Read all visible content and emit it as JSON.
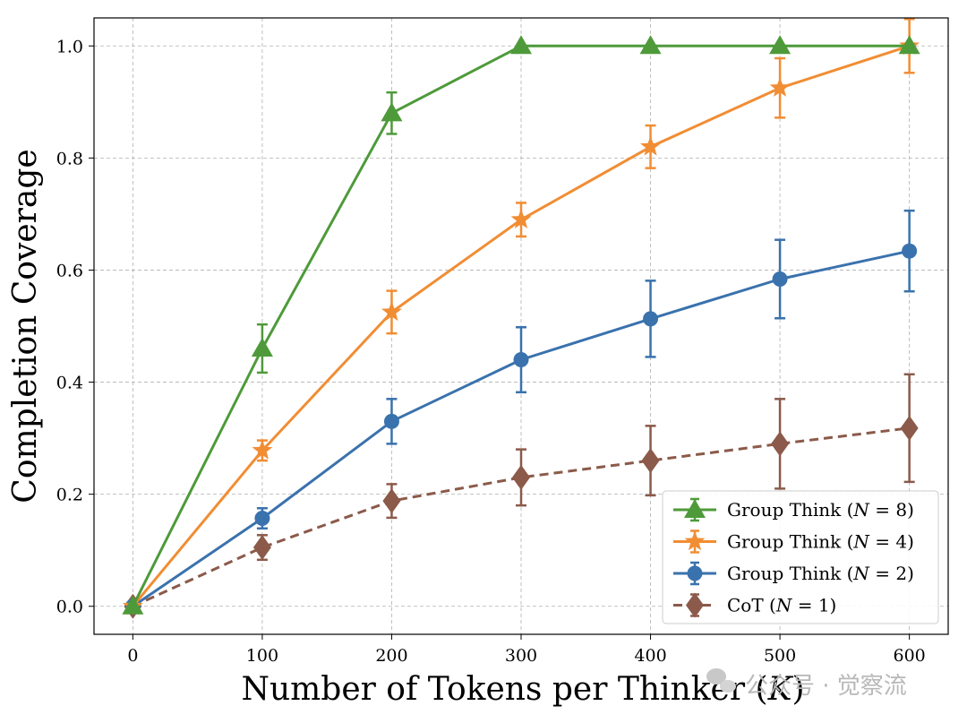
{
  "chart_data": {
    "type": "line",
    "xlabel": "Number of Tokens per Thinker (K)",
    "ylabel": "Completion Coverage",
    "xlim": [
      -30,
      630
    ],
    "ylim": [
      -0.05,
      1.05
    ],
    "x": [
      0,
      100,
      200,
      300,
      400,
      500,
      600
    ],
    "x_ticks": [
      "0",
      "100",
      "200",
      "300",
      "400",
      "500",
      "600"
    ],
    "y_ticks": [
      "0.0",
      "0.2",
      "0.4",
      "0.6",
      "0.8",
      "1.0"
    ],
    "grid": true,
    "legend_position": "lower-right",
    "series": [
      {
        "name": "Group Think (N = 8)",
        "color": "#4e9a3a",
        "marker": "triangle",
        "line_style": "solid",
        "values": [
          0.0,
          0.46,
          0.88,
          1.0,
          1.0,
          1.0,
          1.0
        ],
        "errors": [
          0.0,
          0.043,
          0.037,
          0.0,
          0.0,
          0.0,
          0.0
        ]
      },
      {
        "name": "Group Think (N = 4)",
        "color": "#f18d33",
        "marker": "star",
        "line_style": "solid",
        "values": [
          0.0,
          0.278,
          0.525,
          0.69,
          0.82,
          0.925,
          1.0
        ],
        "errors": [
          0.0,
          0.018,
          0.038,
          0.03,
          0.038,
          0.053,
          0.048
        ]
      },
      {
        "name": "Group Think (N = 2)",
        "color": "#3a72ad",
        "marker": "circle",
        "line_style": "solid",
        "values": [
          0.0,
          0.157,
          0.33,
          0.44,
          0.513,
          0.584,
          0.634
        ],
        "errors": [
          0.0,
          0.018,
          0.04,
          0.058,
          0.068,
          0.07,
          0.072
        ]
      },
      {
        "name": "CoT (N = 1)",
        "color": "#8b5a4a",
        "marker": "diamond",
        "line_style": "dashed",
        "values": [
          0.0,
          0.105,
          0.188,
          0.23,
          0.26,
          0.29,
          0.318
        ],
        "errors": [
          0.0,
          0.022,
          0.03,
          0.05,
          0.062,
          0.08,
          0.096
        ]
      }
    ],
    "legend": [
      {
        "prefix": "Group Think (",
        "var": "N",
        "suffix": " = 8)"
      },
      {
        "prefix": "Group Think (",
        "var": "N",
        "suffix": " = 4)"
      },
      {
        "prefix": "Group Think (",
        "var": "N",
        "suffix": " = 2)"
      },
      {
        "prefix": "CoT (",
        "var": "N",
        "suffix": " = 1)"
      }
    ]
  },
  "labels": {
    "xlabel_main": "Number of Tokens per Thinker (",
    "xlabel_var": "K",
    "xlabel_end": ")",
    "ylabel": "Completion Coverage",
    "watermark": "公众号 · 觉察流"
  }
}
